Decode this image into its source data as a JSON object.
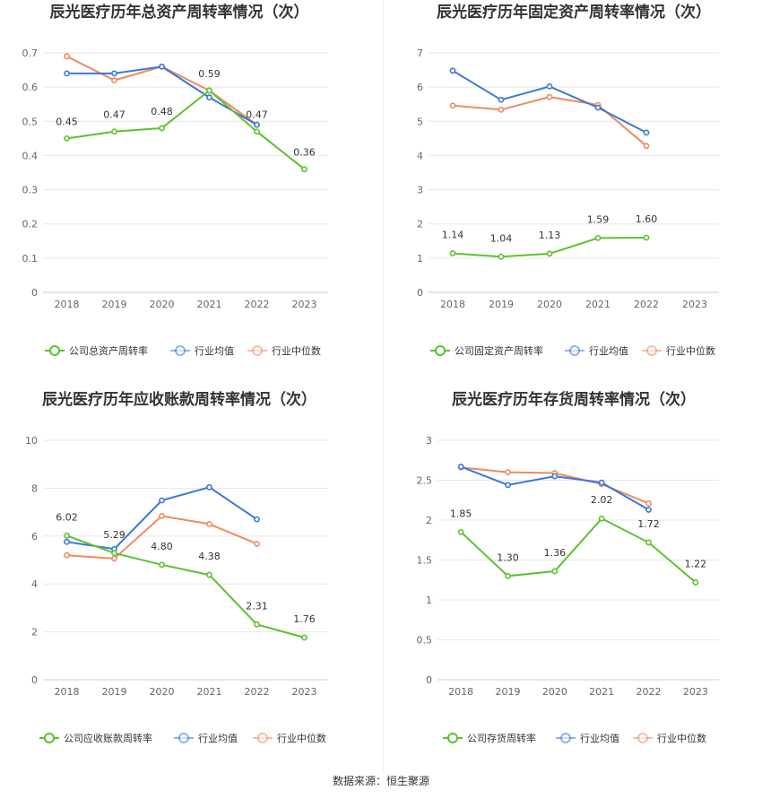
{
  "footer": "数据来源：恒生聚源",
  "colors": {
    "company": "#5cc22e",
    "avg": "#3a78d8",
    "median": "#f08a60"
  },
  "chart_data": [
    {
      "type": "line",
      "title": "辰光医疗历年总资产周转率情况（次）",
      "categories": [
        "2018",
        "2019",
        "2020",
        "2021",
        "2022",
        "2023"
      ],
      "ylim": [
        0,
        0.7
      ],
      "yticks": [
        "0",
        "0.1",
        "0.2",
        "0.3",
        "0.4",
        "0.5",
        "0.6",
        "0.7"
      ],
      "series": [
        {
          "name": "公司总资产周转率",
          "values": [
            0.45,
            0.47,
            0.48,
            0.59,
            0.47,
            0.36
          ],
          "labels": [
            "0.45",
            "0.47",
            "0.48",
            "0.59",
            "0.47",
            "0.36"
          ]
        },
        {
          "name": "行业均值",
          "values": [
            0.64,
            0.64,
            0.66,
            0.57,
            0.49,
            null
          ]
        },
        {
          "name": "行业中位数",
          "values": [
            0.69,
            0.62,
            0.66,
            0.59,
            0.49,
            null
          ]
        }
      ]
    },
    {
      "type": "line",
      "title": "辰光医疗历年固定资产周转率情况（次）",
      "categories": [
        "2018",
        "2019",
        "2020",
        "2021",
        "2022",
        "2023"
      ],
      "ylim": [
        0,
        7
      ],
      "yticks": [
        "0",
        "1",
        "2",
        "3",
        "4",
        "5",
        "6",
        "7"
      ],
      "series": [
        {
          "name": "公司固定资产周转率",
          "values": [
            1.14,
            1.04,
            1.13,
            1.59,
            1.6,
            null
          ],
          "labels": [
            "1.14",
            "1.04",
            "1.13",
            "1.59",
            "1.60",
            null
          ]
        },
        {
          "name": "行业均值",
          "values": [
            6.48,
            5.63,
            6.02,
            5.4,
            4.67,
            null
          ]
        },
        {
          "name": "行业中位数",
          "values": [
            5.46,
            5.34,
            5.71,
            5.48,
            4.28,
            null
          ]
        }
      ]
    },
    {
      "type": "line",
      "title": "辰光医疗历年应收账款周转率情况（次）",
      "categories": [
        "2018",
        "2019",
        "2020",
        "2021",
        "2022",
        "2023"
      ],
      "ylim": [
        0,
        10
      ],
      "yticks": [
        "0",
        "2",
        "4",
        "6",
        "8",
        "10"
      ],
      "series": [
        {
          "name": "公司应收账款周转率",
          "values": [
            6.02,
            5.29,
            4.8,
            4.38,
            2.31,
            1.76
          ],
          "labels": [
            "6.02",
            "5.29",
            "4.80",
            "4.38",
            "2.31",
            "1.76"
          ]
        },
        {
          "name": "行业均值",
          "values": [
            5.76,
            5.46,
            7.49,
            8.04,
            6.7,
            null
          ]
        },
        {
          "name": "行业中位数",
          "values": [
            5.2,
            5.06,
            6.84,
            6.5,
            5.68,
            null
          ]
        }
      ]
    },
    {
      "type": "line",
      "title": "辰光医疗历年存货周转率情况（次）",
      "categories": [
        "2018",
        "2019",
        "2020",
        "2021",
        "2022",
        "2023"
      ],
      "ylim": [
        0,
        3
      ],
      "yticks": [
        "0",
        "0.5",
        "1",
        "1.5",
        "2",
        "2.5",
        "3"
      ],
      "series": [
        {
          "name": "公司存货周转率",
          "values": [
            1.85,
            1.3,
            1.36,
            2.02,
            1.72,
            1.22
          ],
          "labels": [
            "1.85",
            "1.30",
            "1.36",
            "2.02",
            "1.72",
            "1.22"
          ]
        },
        {
          "name": "行业均值",
          "values": [
            2.67,
            2.44,
            2.55,
            2.47,
            2.13,
            null
          ]
        },
        {
          "name": "行业中位数",
          "values": [
            2.66,
            2.6,
            2.59,
            2.45,
            2.21,
            null
          ]
        }
      ]
    }
  ]
}
